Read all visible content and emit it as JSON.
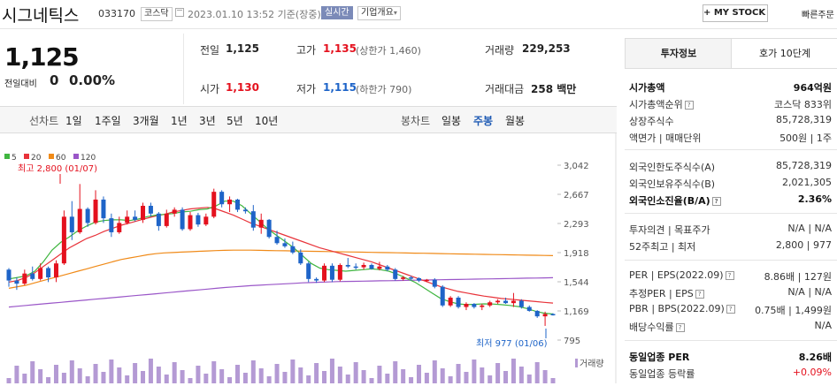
{
  "header": {
    "company": "시그네틱스",
    "code": "033170",
    "market": "코스닥",
    "datetime": "2023.01.10 13:52 기준(장중)",
    "realtime": "실시간",
    "overview": "기업개요",
    "mystock": "+ MY STOCK 추가",
    "quick": "빠른주문"
  },
  "quote": {
    "price": "1,125",
    "change_label": "전일대비",
    "change_value": "0",
    "change_pct": "0.00%",
    "prev_label": "전일",
    "prev": "1,125",
    "high_label": "고가",
    "high": "1,135",
    "upper_limit": "(상한가 1,460)",
    "volume_label": "거래량",
    "volume": "229,253",
    "open_label": "시가",
    "open": "1,130",
    "low_label": "저가",
    "low": "1,115",
    "lower_limit": "(하한가 790)",
    "amount_label": "거래대금",
    "amount": "258 백만"
  },
  "period": {
    "line_label": "선차트",
    "line_items": [
      "1일",
      "1주일",
      "3개월",
      "1년",
      "3년",
      "5년",
      "10년"
    ],
    "candle_label": "봉차트",
    "candle_items": [
      "일봉",
      "주봉",
      "월봉"
    ],
    "active_candle": "주봉"
  },
  "chart_data": {
    "type": "candlestick",
    "legend": [
      {
        "name": "5",
        "color": "#40b640"
      },
      {
        "name": "20",
        "color": "#e8333a"
      },
      {
        "name": "60",
        "color": "#f08a18"
      },
      {
        "name": "120",
        "color": "#9a56c8"
      }
    ],
    "y_ticks": [
      "3,042",
      "2,667",
      "2,293",
      "1,918",
      "1,544",
      "1,169",
      "795"
    ],
    "ylim": [
      795,
      3042
    ],
    "max_label": "최고 2,800 (01/07)",
    "min_label": "최저 977 (01/06)",
    "volume_label": "거래량",
    "candles": [
      [
        1700,
        1720,
        1480,
        1560
      ],
      [
        1560,
        1600,
        1440,
        1520
      ],
      [
        1520,
        1700,
        1500,
        1650
      ],
      [
        1650,
        1740,
        1560,
        1580
      ],
      [
        1580,
        1780,
        1560,
        1720
      ],
      [
        1720,
        1740,
        1540,
        1600
      ],
      [
        1600,
        1820,
        1540,
        1780
      ],
      [
        1780,
        2460,
        1760,
        2380
      ],
      [
        2380,
        2580,
        2080,
        2180
      ],
      [
        2180,
        2800,
        2160,
        2480
      ],
      [
        2480,
        2500,
        2250,
        2300
      ],
      [
        2300,
        2720,
        2280,
        2600
      ],
      [
        2600,
        2640,
        2300,
        2360
      ],
      [
        2360,
        2420,
        2120,
        2180
      ],
      [
        2180,
        2380,
        2160,
        2300
      ],
      [
        2300,
        2460,
        2280,
        2380
      ],
      [
        2380,
        2460,
        2320,
        2340
      ],
      [
        2340,
        2560,
        2300,
        2520
      ],
      [
        2520,
        2560,
        2380,
        2420
      ],
      [
        2420,
        2440,
        2200,
        2260
      ],
      [
        2260,
        2470,
        2240,
        2420
      ],
      [
        2420,
        2500,
        2380,
        2470
      ],
      [
        2470,
        2500,
        2200,
        2220
      ],
      [
        2220,
        2440,
        2200,
        2400
      ],
      [
        2400,
        2430,
        2250,
        2280
      ],
      [
        2280,
        2420,
        2260,
        2380
      ],
      [
        2380,
        2740,
        2360,
        2700
      ],
      [
        2700,
        2720,
        2500,
        2540
      ],
      [
        2540,
        2640,
        2440,
        2600
      ],
      [
        2600,
        2610,
        2440,
        2470
      ],
      [
        2470,
        2500,
        2420,
        2450
      ],
      [
        2450,
        2530,
        2200,
        2240
      ],
      [
        2240,
        2420,
        2160,
        2340
      ],
      [
        2340,
        2350,
        2100,
        2120
      ],
      [
        2120,
        2200,
        2020,
        2040
      ],
      [
        2040,
        2100,
        1980,
        2000
      ],
      [
        2000,
        2060,
        1900,
        1920
      ],
      [
        1920,
        1960,
        1760,
        1780
      ],
      [
        1780,
        1800,
        1540,
        1580
      ],
      [
        1580,
        1600,
        1530,
        1560
      ],
      [
        1560,
        1780,
        1540,
        1750
      ],
      [
        1750,
        1780,
        1540,
        1570
      ],
      [
        1570,
        1780,
        1550,
        1760
      ],
      [
        1760,
        1850,
        1720,
        1740
      ],
      [
        1740,
        1780,
        1700,
        1730
      ],
      [
        1730,
        1790,
        1700,
        1760
      ],
      [
        1760,
        1780,
        1700,
        1710
      ],
      [
        1710,
        1800,
        1690,
        1740
      ],
      [
        1740,
        1760,
        1680,
        1700
      ],
      [
        1700,
        1720,
        1560,
        1580
      ],
      [
        1580,
        1620,
        1560,
        1600
      ],
      [
        1600,
        1620,
        1560,
        1590
      ],
      [
        1590,
        1600,
        1540,
        1560
      ],
      [
        1560,
        1580,
        1540,
        1570
      ],
      [
        1570,
        1590,
        1460,
        1480
      ],
      [
        1480,
        1500,
        1220,
        1240
      ],
      [
        1240,
        1360,
        1220,
        1340
      ],
      [
        1340,
        1360,
        1200,
        1220
      ],
      [
        1220,
        1280,
        1180,
        1260
      ],
      [
        1260,
        1270,
        1200,
        1220
      ],
      [
        1220,
        1260,
        1180,
        1240
      ],
      [
        1240,
        1300,
        1220,
        1280
      ],
      [
        1280,
        1320,
        1260,
        1300
      ],
      [
        1300,
        1340,
        1260,
        1270
      ],
      [
        1270,
        1400,
        1220,
        1300
      ],
      [
        1300,
        1320,
        1200,
        1220
      ],
      [
        1220,
        1240,
        1160,
        1170
      ],
      [
        1170,
        1180,
        1080,
        1100
      ],
      [
        1100,
        1160,
        977,
        1130
      ],
      [
        1130,
        1140,
        1110,
        1125
      ]
    ],
    "ma5": [
      1580,
      1600,
      1620,
      1680,
      1800,
      1950,
      2050,
      2120,
      2200,
      2260,
      2310,
      2330,
      2340,
      2340,
      2330,
      2350,
      2380,
      2400,
      2410,
      2420,
      2440,
      2450,
      2470,
      2480,
      2520,
      2580,
      2580,
      2520,
      2420,
      2320,
      2220,
      2140,
      2060,
      1980,
      1880,
      1780,
      1720,
      1700,
      1690,
      1680,
      1690,
      1700,
      1710,
      1700,
      1680,
      1640,
      1590,
      1540,
      1470,
      1400,
      1330,
      1290,
      1260,
      1250,
      1255,
      1260,
      1258,
      1250,
      1240,
      1225,
      1200,
      1165,
      1140,
      1130
    ],
    "ma20": [
      1540,
      1560,
      1600,
      1660,
      1740,
      1820,
      1900,
      1980,
      2040,
      2100,
      2140,
      2190,
      2230,
      2270,
      2300,
      2330,
      2360,
      2390,
      2410,
      2440,
      2460,
      2480,
      2490,
      2500,
      2480,
      2440,
      2400,
      2350,
      2300,
      2260,
      2220,
      2180,
      2140,
      2100,
      2060,
      2020,
      1980,
      1950,
      1920,
      1890,
      1860,
      1830,
      1800,
      1760,
      1720,
      1680,
      1640,
      1600,
      1560,
      1520,
      1480,
      1450,
      1420,
      1400,
      1380,
      1360,
      1345,
      1330,
      1320,
      1310,
      1300,
      1290,
      1280,
      1270
    ],
    "ma60": [
      1460,
      1480,
      1500,
      1530,
      1560,
      1590,
      1620,
      1650,
      1680,
      1710,
      1740,
      1770,
      1800,
      1830,
      1850,
      1870,
      1890,
      1905,
      1915,
      1920,
      1925,
      1930,
      1935,
      1940,
      1945,
      1948,
      1950,
      1950,
      1950,
      1948,
      1946,
      1944,
      1942,
      1940,
      1938,
      1936,
      1934,
      1932,
      1930,
      1928,
      1926,
      1924,
      1922,
      1920,
      1918,
      1916,
      1914,
      1912,
      1910,
      1908,
      1906,
      1904,
      1902,
      1900,
      1898,
      1896,
      1894,
      1892,
      1890,
      1888,
      1886,
      1884,
      1882,
      1880
    ],
    "ma120": [
      1220,
      1230,
      1240,
      1250,
      1260,
      1270,
      1280,
      1290,
      1300,
      1310,
      1320,
      1330,
      1340,
      1350,
      1360,
      1370,
      1380,
      1390,
      1400,
      1410,
      1420,
      1430,
      1440,
      1450,
      1460,
      1470,
      1478,
      1486,
      1494,
      1500,
      1506,
      1512,
      1518,
      1524,
      1530,
      1534,
      1538,
      1542,
      1546,
      1548,
      1550,
      1552,
      1554,
      1556,
      1558,
      1560,
      1562,
      1564,
      1566,
      1568,
      1570,
      1572,
      1574,
      1576,
      1578,
      1580,
      1582,
      1584,
      1586,
      1588,
      1590,
      1592,
      1594,
      1596
    ]
  },
  "panel": {
    "tab_active": "투자정보",
    "tab_other": "호가 10단계",
    "rows": [
      {
        "label": "시가총액",
        "value": "964억원",
        "bold": true
      },
      {
        "label": "시가총액순위",
        "value": "코스닥 833위"
      },
      {
        "label": "상장주식수",
        "value": "85,728,319"
      },
      {
        "label": "액면가 | 매매단위",
        "value": "500원 | 1주"
      },
      {
        "label": "외국인한도주식수(A)",
        "value": "85,728,319"
      },
      {
        "label": "외국인보유주식수(B)",
        "value": "2,021,305"
      },
      {
        "label": "외국인소진율(B/A)",
        "value": "2.36%",
        "bold": true
      },
      {
        "label": "투자의견 | 목표주가",
        "value": "N/A | N/A"
      },
      {
        "label": "52주최고 | 최저",
        "value": "2,800 | 977"
      },
      {
        "label": "PER | EPS(2022.09)",
        "value": "8.86배 | 127원"
      },
      {
        "label": "추정PER | EPS",
        "value": "N/A | N/A"
      },
      {
        "label": "PBR | BPS(2022.09)",
        "value": "0.75배 | 1,499원"
      },
      {
        "label": "배당수익률",
        "value": "N/A"
      },
      {
        "label": "동일업종 PER",
        "value": "8.26배",
        "bold": true
      },
      {
        "label": "동일업종 등락률",
        "value": "+0.09%"
      }
    ]
  }
}
